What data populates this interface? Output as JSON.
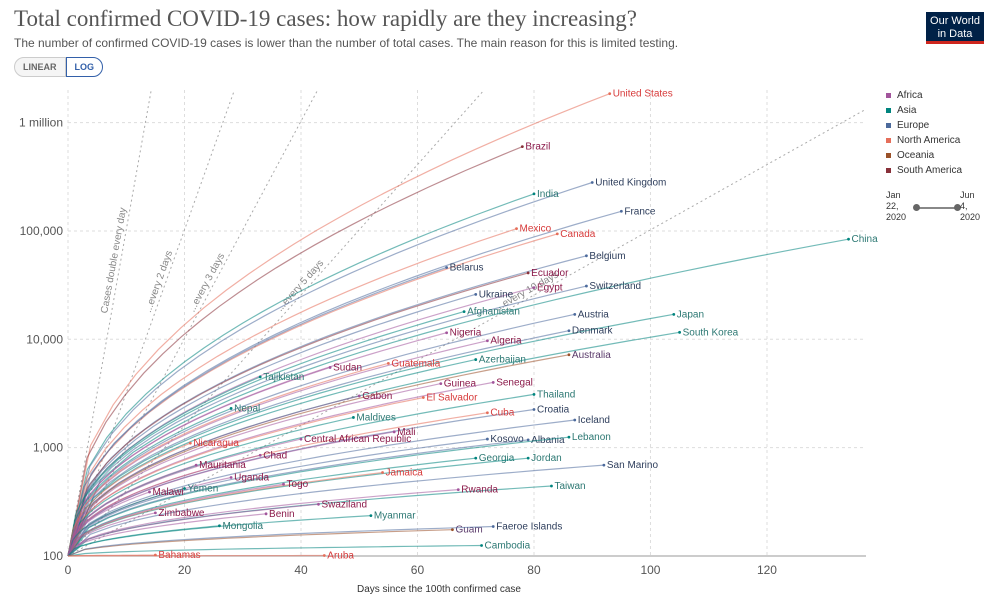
{
  "header": {
    "title": "Total confirmed COVID-19 cases: how rapidly are they increasing?",
    "subtitle": "The number of confirmed COVID-19 cases is lower than the number of total cases. The main reason for this is limited testing.",
    "scale_linear": "LINEAR",
    "scale_log": "LOG",
    "logo_line1": "Our World",
    "logo_line2": "in Data"
  },
  "legend": {
    "items": [
      {
        "label": "Africa",
        "color": "#a2559c"
      },
      {
        "label": "Asia",
        "color": "#00847e"
      },
      {
        "label": "Europe",
        "color": "#4c6a9c"
      },
      {
        "label": "North America",
        "color": "#e56e5a"
      },
      {
        "label": "Oceania",
        "color": "#9a5129"
      },
      {
        "label": "South America",
        "color": "#883039"
      }
    ]
  },
  "timeline": {
    "start": [
      "Jan",
      "22,",
      "2020"
    ],
    "end": [
      "Jun",
      "4,",
      "2020"
    ]
  },
  "chart_data": {
    "type": "line",
    "title": "Total confirmed COVID-19 cases: how rapidly are they increasing?",
    "xlabel": "Days since the 100th confirmed case",
    "ylabel": "",
    "scale": "log",
    "xlim": [
      0,
      137
    ],
    "ylim": [
      100,
      2000000
    ],
    "x_ticks": [
      0,
      20,
      40,
      60,
      80,
      100,
      120
    ],
    "y_ticks": [
      {
        "value": 100,
        "label": "100"
      },
      {
        "value": 1000,
        "label": "1,000"
      },
      {
        "value": 10000,
        "label": "10,000"
      },
      {
        "value": 100000,
        "label": "100,000"
      },
      {
        "value": 1000000,
        "label": "1 million"
      }
    ],
    "reference_lines": [
      {
        "label": "Cases double every day",
        "doubling_days": 1
      },
      {
        "label": "...every 2 days",
        "doubling_days": 2
      },
      {
        "label": "...every 3 days",
        "doubling_days": 3
      },
      {
        "label": "...every 5 days",
        "doubling_days": 5
      },
      {
        "label": "...every 10 days",
        "doubling_days": 10
      }
    ],
    "series": [
      {
        "name": "United States",
        "region": "North America",
        "days": 93,
        "cases": 1850000
      },
      {
        "name": "Brazil",
        "region": "South America",
        "days": 78,
        "cases": 600000
      },
      {
        "name": "United Kingdom",
        "region": "Europe",
        "days": 90,
        "cases": 280000
      },
      {
        "name": "India",
        "region": "Asia",
        "days": 80,
        "cases": 220000
      },
      {
        "name": "France",
        "region": "Europe",
        "days": 95,
        "cases": 152000
      },
      {
        "name": "Mexico",
        "region": "North America",
        "days": 77,
        "cases": 105000
      },
      {
        "name": "Canada",
        "region": "North America",
        "days": 84,
        "cases": 94000
      },
      {
        "name": "China",
        "region": "Asia",
        "days": 134,
        "cases": 84000
      },
      {
        "name": "Belgium",
        "region": "Europe",
        "days": 89,
        "cases": 59000
      },
      {
        "name": "Belarus",
        "region": "Europe",
        "days": 65,
        "cases": 46000
      },
      {
        "name": "Ecuador",
        "region": "South America",
        "days": 79,
        "cases": 41000
      },
      {
        "name": "Egypt",
        "region": "Africa",
        "days": 80,
        "cases": 30000
      },
      {
        "name": "Switzerland",
        "region": "Europe",
        "days": 89,
        "cases": 31000
      },
      {
        "name": "Ukraine",
        "region": "Europe",
        "days": 70,
        "cases": 26000
      },
      {
        "name": "Afghanistan",
        "region": "Asia",
        "days": 68,
        "cases": 18000
      },
      {
        "name": "Austria",
        "region": "Europe",
        "days": 87,
        "cases": 17000
      },
      {
        "name": "Japan",
        "region": "Asia",
        "days": 104,
        "cases": 17000
      },
      {
        "name": "Nigeria",
        "region": "Africa",
        "days": 65,
        "cases": 11500
      },
      {
        "name": "Denmark",
        "region": "Europe",
        "days": 86,
        "cases": 12000
      },
      {
        "name": "South Korea",
        "region": "Asia",
        "days": 105,
        "cases": 11600
      },
      {
        "name": "Algeria",
        "region": "Africa",
        "days": 72,
        "cases": 9700
      },
      {
        "name": "Australia",
        "region": "Oceania",
        "days": 86,
        "cases": 7200
      },
      {
        "name": "Azerbaijan",
        "region": "Asia",
        "days": 70,
        "cases": 6500
      },
      {
        "name": "Sudan",
        "region": "Africa",
        "days": 45,
        "cases": 5500
      },
      {
        "name": "Guatemala",
        "region": "North America",
        "days": 55,
        "cases": 6000
      },
      {
        "name": "Tajikistan",
        "region": "Asia",
        "days": 33,
        "cases": 4500
      },
      {
        "name": "Guinea",
        "region": "Africa",
        "days": 64,
        "cases": 3900
      },
      {
        "name": "Senegal",
        "region": "Africa",
        "days": 73,
        "cases": 4000
      },
      {
        "name": "Thailand",
        "region": "Asia",
        "days": 80,
        "cases": 3100
      },
      {
        "name": "Gabon",
        "region": "Africa",
        "days": 50,
        "cases": 3000
      },
      {
        "name": "El Salvador",
        "region": "North America",
        "days": 61,
        "cases": 2900
      },
      {
        "name": "Nepal",
        "region": "Asia",
        "days": 28,
        "cases": 2300
      },
      {
        "name": "Croatia",
        "region": "Europe",
        "days": 80,
        "cases": 2250
      },
      {
        "name": "Cuba",
        "region": "North America",
        "days": 72,
        "cases": 2100
      },
      {
        "name": "Maldives",
        "region": "Asia",
        "days": 49,
        "cases": 1900
      },
      {
        "name": "Iceland",
        "region": "Europe",
        "days": 87,
        "cases": 1800
      },
      {
        "name": "Mali",
        "region": "Africa",
        "days": 56,
        "cases": 1400
      },
      {
        "name": "Kosovo",
        "region": "Europe",
        "days": 72,
        "cases": 1200
      },
      {
        "name": "Albania",
        "region": "Europe",
        "days": 79,
        "cases": 1180
      },
      {
        "name": "Lebanon",
        "region": "Asia",
        "days": 86,
        "cases": 1250
      },
      {
        "name": "Nicaragua",
        "region": "North America",
        "days": 21,
        "cases": 1100
      },
      {
        "name": "Central African Republic",
        "region": "Africa",
        "days": 40,
        "cases": 1200
      },
      {
        "name": "Chad",
        "region": "Africa",
        "days": 33,
        "cases": 850
      },
      {
        "name": "Georgia",
        "region": "Asia",
        "days": 70,
        "cases": 800
      },
      {
        "name": "Jordan",
        "region": "Asia",
        "days": 79,
        "cases": 800
      },
      {
        "name": "San Marino",
        "region": "Europe",
        "days": 92,
        "cases": 690
      },
      {
        "name": "Mauritania",
        "region": "Africa",
        "days": 22,
        "cases": 690
      },
      {
        "name": "Uganda",
        "region": "Africa",
        "days": 28,
        "cases": 530
      },
      {
        "name": "Jamaica",
        "region": "North America",
        "days": 54,
        "cases": 590
      },
      {
        "name": "Togo",
        "region": "Africa",
        "days": 37,
        "cases": 460
      },
      {
        "name": "Yemen",
        "region": "Asia",
        "days": 20,
        "cases": 420
      },
      {
        "name": "Taiwan",
        "region": "Asia",
        "days": 83,
        "cases": 443
      },
      {
        "name": "Malawi",
        "region": "Africa",
        "days": 14,
        "cases": 390
      },
      {
        "name": "Rwanda",
        "region": "Africa",
        "days": 67,
        "cases": 410
      },
      {
        "name": "Swaziland",
        "region": "Africa",
        "days": 43,
        "cases": 300
      },
      {
        "name": "Zimbabwe",
        "region": "Africa",
        "days": 15,
        "cases": 250
      },
      {
        "name": "Benin",
        "region": "Africa",
        "days": 34,
        "cases": 245
      },
      {
        "name": "Myanmar",
        "region": "Asia",
        "days": 52,
        "cases": 236
      },
      {
        "name": "Mongolia",
        "region": "Asia",
        "days": 26,
        "cases": 190
      },
      {
        "name": "Guam",
        "region": "Oceania",
        "days": 66,
        "cases": 175
      },
      {
        "name": "Faeroe Islands",
        "region": "Europe",
        "days": 73,
        "cases": 187
      },
      {
        "name": "Cambodia",
        "region": "Asia",
        "days": 71,
        "cases": 125
      },
      {
        "name": "Bahamas",
        "region": "North America",
        "days": 15,
        "cases": 102
      },
      {
        "name": "Aruba",
        "region": "North America",
        "days": 44,
        "cases": 101
      }
    ]
  }
}
